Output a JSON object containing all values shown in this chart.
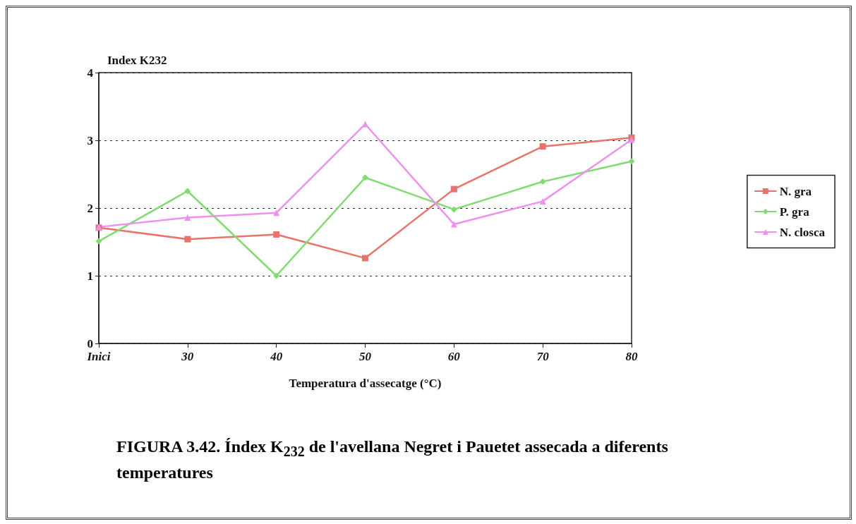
{
  "chart_data": {
    "type": "line",
    "title": "FIGURA 3.42. Índex K$_{232}$ de l'avellana Negret i Pauetet assecada a diferents temperatures",
    "xlabel": "Temperatura d'assecatge (°C)",
    "ylabel": "Index K232",
    "categories": [
      "Inici",
      "30",
      "40",
      "50",
      "60",
      "70",
      "80"
    ],
    "series": [
      {
        "name": "N. gra",
        "color": "#e8736a",
        "marker": "square",
        "values": [
          1.71,
          1.54,
          1.61,
          1.26,
          2.28,
          2.91,
          3.04
        ]
      },
      {
        "name": "P. gra",
        "color": "#80dc70",
        "marker": "diamond",
        "values": [
          1.51,
          2.25,
          1.0,
          2.45,
          1.98,
          2.39,
          2.69
        ]
      },
      {
        "name": "N. closca",
        "color": "#ee90ee",
        "marker": "triangle",
        "values": [
          1.72,
          1.86,
          1.93,
          3.24,
          1.76,
          2.1,
          3.01
        ]
      }
    ],
    "ylim": [
      0,
      4
    ],
    "yticks": [
      0,
      1,
      2,
      3,
      4
    ],
    "grid": "y",
    "legend": "right",
    "line_style": "solid"
  }
}
